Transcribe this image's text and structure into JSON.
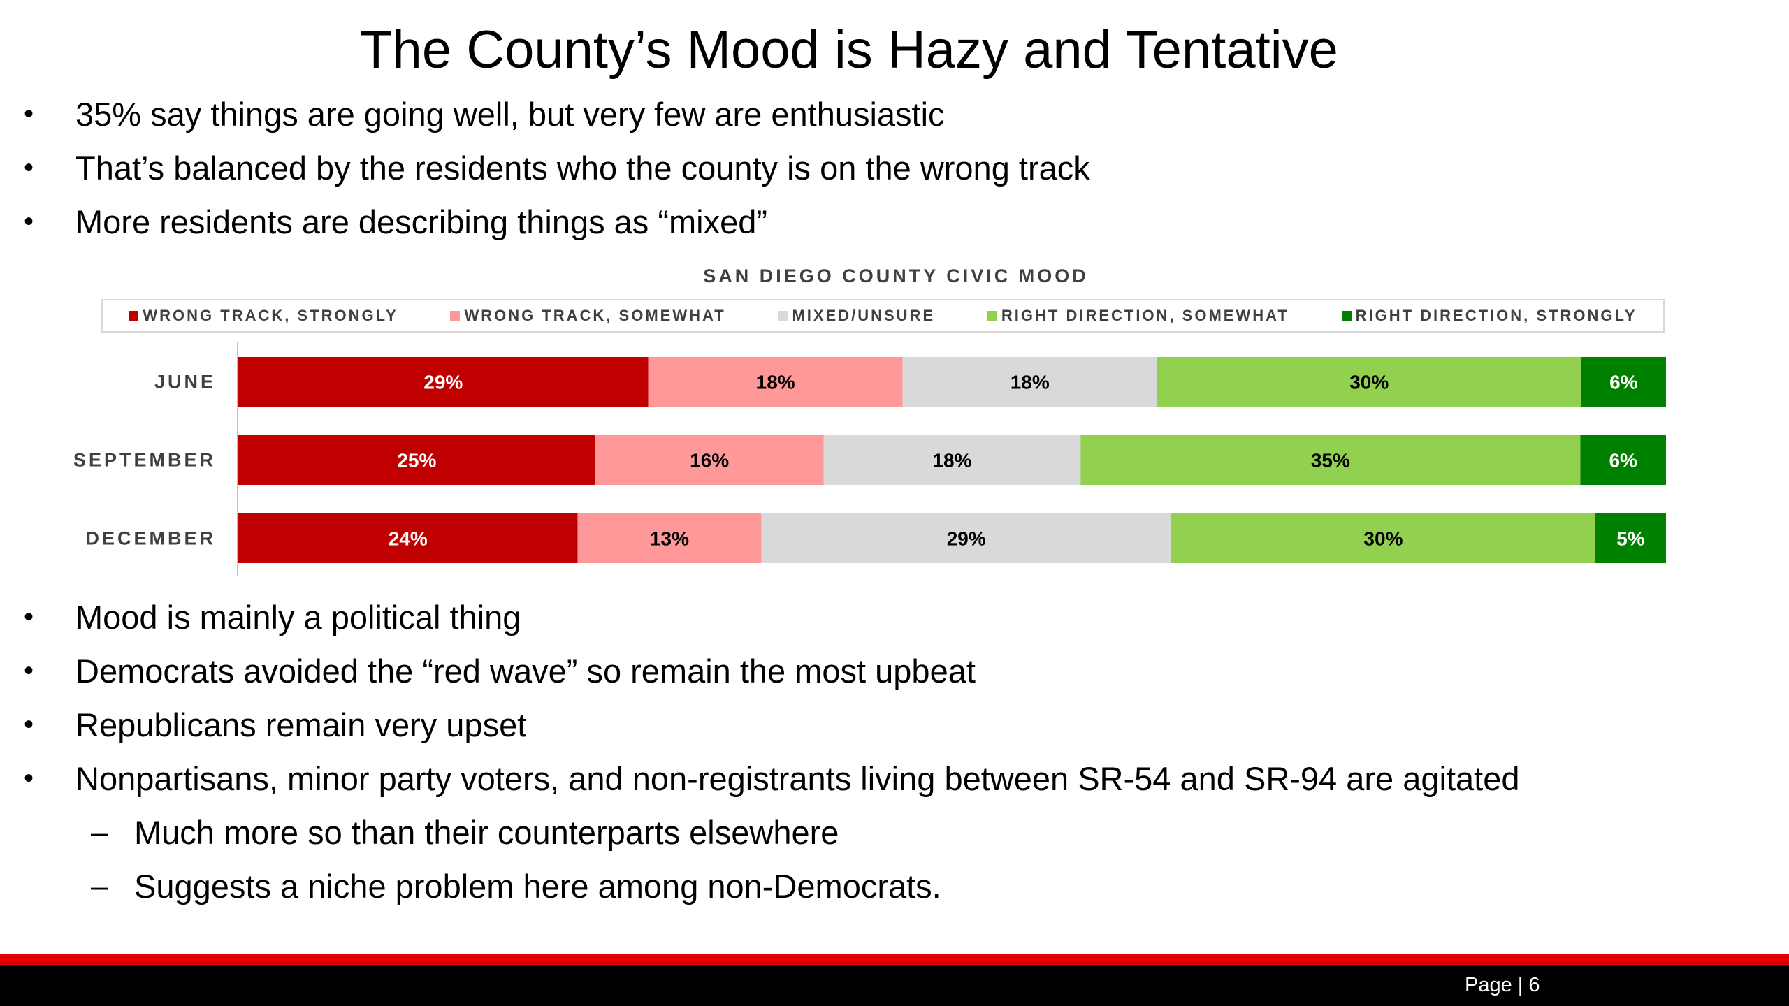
{
  "slide": {
    "title": "The County’s Mood is Hazy and Tentative",
    "bullets_top": [
      "35% say things are going well, but very few are enthusiastic",
      "That’s balanced by the residents who the county is on the wrong track",
      "More residents are describing things as “mixed”"
    ],
    "bullets_bottom": [
      "Mood is mainly a political thing",
      "Democrats avoided the “red wave” so remain the most upbeat",
      "Republicans remain very upset",
      "Nonpartisans, minor party voters, and non-registrants living between SR-54 and SR-94 are agitated"
    ],
    "sub_bullets": [
      "Much more so than their counterparts elsewhere",
      "Suggests a niche problem here among non-Democrats."
    ],
    "page_label": "Page | 6"
  },
  "chart_data": {
    "type": "bar",
    "orientation": "horizontal",
    "stacked": true,
    "percent_stacked": true,
    "title": "SAN DIEGO COUNTY CIVIC MOOD",
    "legend_position": "top",
    "categories": [
      "JUNE",
      "SEPTEMBER",
      "DECEMBER"
    ],
    "series": [
      {
        "name": "WRONG TRACK, STRONGLY",
        "color": "#c00000",
        "label_color": "#ffffff",
        "values": [
          29,
          25,
          24
        ],
        "labels": [
          "29%",
          "25%",
          "24%"
        ]
      },
      {
        "name": "WRONG TRACK, SOMEWHAT",
        "color": "#ff9999",
        "label_color": "#000000",
        "values": [
          18,
          16,
          13
        ],
        "labels": [
          "18%",
          "16%",
          "13%"
        ]
      },
      {
        "name": "MIXED/UNSURE",
        "color": "#d9d9d9",
        "label_color": "#000000",
        "values": [
          18,
          18,
          29
        ],
        "labels": [
          "18%",
          "18%",
          "29%"
        ]
      },
      {
        "name": "RIGHT DIRECTION, SOMEWHAT",
        "color": "#92d050",
        "label_color": "#000000",
        "values": [
          30,
          35,
          30
        ],
        "labels": [
          "30%",
          "35%",
          "30%"
        ]
      },
      {
        "name": "RIGHT DIRECTION, STRONGLY",
        "color": "#008000",
        "label_color": "#ffffff",
        "values": [
          6,
          6,
          5
        ],
        "labels": [
          "6%",
          "6%",
          "5%"
        ]
      }
    ]
  }
}
